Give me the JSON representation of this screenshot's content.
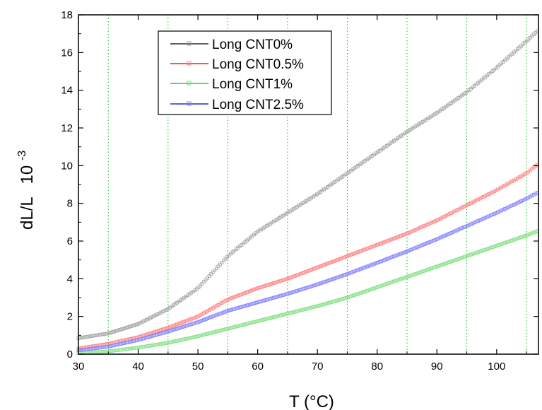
{
  "chart_data": {
    "type": "scatter",
    "xlabel": "T (°C)",
    "ylabel": "dL/L",
    "ylabel_exponent": "10",
    "ylabel_power": "-3",
    "xlim": [
      30,
      107
    ],
    "ylim": [
      0,
      18
    ],
    "xticks": [
      30,
      40,
      50,
      60,
      70,
      80,
      90,
      100
    ],
    "yticks": [
      0,
      2,
      4,
      6,
      8,
      10,
      12,
      14,
      16,
      18
    ],
    "vertical_grid_x": [
      35,
      45,
      55,
      65,
      75,
      85,
      95,
      105
    ],
    "grid_color": "#00c000",
    "legend_position": "top-left",
    "series": [
      {
        "name": "Long CNT0%",
        "marker_color": "#a0a0a0",
        "legend_line_color": "#000000",
        "x": [
          30,
          35,
          40,
          45,
          50,
          55,
          60,
          65,
          70,
          75,
          80,
          85,
          90,
          95,
          100,
          105,
          107
        ],
        "y": [
          0.85,
          1.1,
          1.6,
          2.4,
          3.5,
          5.2,
          6.5,
          7.5,
          8.5,
          9.6,
          10.7,
          11.8,
          12.8,
          13.9,
          15.2,
          16.6,
          17.2
        ]
      },
      {
        "name": "Long CNT0.5%",
        "marker_color": "#ff8080",
        "legend_line_color": "#d00000",
        "x": [
          30,
          35,
          40,
          45,
          50,
          55,
          60,
          65,
          70,
          75,
          80,
          85,
          90,
          95,
          100,
          105,
          107
        ],
        "y": [
          0.3,
          0.55,
          0.9,
          1.4,
          2.0,
          2.9,
          3.5,
          4.0,
          4.6,
          5.2,
          5.8,
          6.4,
          7.1,
          7.9,
          8.7,
          9.6,
          10.1
        ]
      },
      {
        "name": "Long CNT1%",
        "marker_color": "#80e080",
        "legend_line_color": "#00c000",
        "x": [
          30,
          35,
          40,
          45,
          50,
          55,
          60,
          65,
          70,
          75,
          80,
          85,
          90,
          95,
          100,
          105,
          107
        ],
        "y": [
          0.05,
          0.15,
          0.35,
          0.6,
          0.95,
          1.35,
          1.75,
          2.15,
          2.55,
          3.0,
          3.55,
          4.1,
          4.65,
          5.2,
          5.75,
          6.3,
          6.55
        ]
      },
      {
        "name": "Long CNT2.5%",
        "marker_color": "#8080ff",
        "legend_line_color": "#0000c0",
        "x": [
          30,
          35,
          40,
          45,
          50,
          55,
          60,
          65,
          70,
          75,
          80,
          85,
          90,
          95,
          100,
          105,
          107
        ],
        "y": [
          0.2,
          0.4,
          0.75,
          1.2,
          1.7,
          2.3,
          2.75,
          3.2,
          3.7,
          4.25,
          4.85,
          5.45,
          6.1,
          6.8,
          7.5,
          8.25,
          8.6
        ]
      }
    ]
  }
}
